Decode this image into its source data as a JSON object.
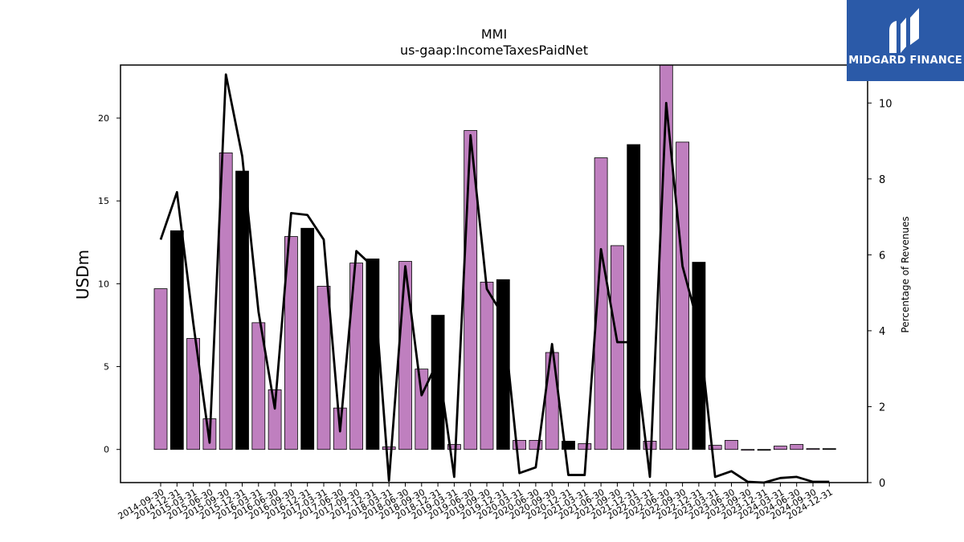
{
  "chart_data": {
    "type": "bar",
    "title": "MMI",
    "subtitle": "us-gaap:IncomeTaxesPaidNet",
    "ylabel": "USDm",
    "y2label": "Percentage of Revenues",
    "ylim": [
      -2,
      23.2
    ],
    "y2lim": [
      0,
      11
    ],
    "yticks": [
      0,
      5,
      10,
      15,
      20
    ],
    "y2ticks": [
      0,
      2,
      4,
      6,
      8,
      10
    ],
    "categories": [
      "2014-09-30",
      "2014-12-31",
      "2015-03-31",
      "2015-06-30",
      "2015-09-30",
      "2015-12-31",
      "2016-03-31",
      "2016-06-30",
      "2016-09-30",
      "2016-12-31",
      "2017-03-31",
      "2017-06-30",
      "2017-09-30",
      "2017-12-31",
      "2018-03-31",
      "2018-06-30",
      "2018-09-30",
      "2018-12-31",
      "2019-03-31",
      "2019-06-30",
      "2019-09-30",
      "2019-12-31",
      "2020-03-31",
      "2020-06-30",
      "2020-09-30",
      "2020-12-31",
      "2021-03-31",
      "2021-06-30",
      "2021-09-30",
      "2021-12-31",
      "2022-03-31",
      "2022-06-30",
      "2022-09-30",
      "2022-12-31",
      "2023-03-31",
      "2023-06-30",
      "2023-09-30",
      "2023-12-31",
      "2024-03-31",
      "2024-06-30",
      "2024-09-30",
      "2024-12-31"
    ],
    "series": [
      {
        "values": [
          9.7,
          13.2,
          6.7,
          1.85,
          17.9,
          16.8,
          7.65,
          3.6,
          12.85,
          13.35,
          9.85,
          2.5,
          11.25,
          11.5,
          0.15,
          11.35,
          4.85,
          8.1,
          0.3,
          19.25,
          10.1,
          10.25,
          0.55,
          0.55,
          5.85,
          0.5,
          0.35,
          17.6,
          12.3,
          18.4,
          0.5,
          23.2,
          18.55,
          11.3,
          0.25,
          0.55,
          0.0,
          -0.05,
          0.2,
          0.3,
          0.05,
          0.05
        ],
        "q4_flags": [
          false,
          true,
          false,
          false,
          false,
          true,
          false,
          false,
          false,
          true,
          false,
          false,
          false,
          true,
          false,
          false,
          false,
          true,
          false,
          false,
          false,
          true,
          false,
          false,
          false,
          true,
          false,
          false,
          false,
          true,
          false,
          false,
          false,
          true,
          false,
          false,
          false,
          true,
          false,
          false,
          false,
          true
        ]
      },
      {
        "axis": "right",
        "type": "line",
        "values": [
          6.4,
          7.65,
          4.2,
          1.05,
          10.75,
          8.6,
          4.5,
          1.95,
          7.1,
          7.05,
          6.4,
          1.35,
          6.1,
          5.7,
          0.05,
          5.7,
          2.3,
          3.2,
          0.15,
          9.15,
          5.1,
          4.4,
          0.25,
          0.4,
          3.65,
          0.2,
          0.2,
          6.15,
          3.7,
          3.7,
          0.15,
          10.0,
          5.7,
          4.1,
          0.15,
          0.3,
          0.02,
          0.0,
          0.12,
          0.15,
          0.02,
          0.02
        ]
      }
    ],
    "colors": {
      "bar": "#bf7fbf",
      "bar_q4": "#000000",
      "line": "#000000"
    }
  },
  "logo": {
    "text": "MIDGARD FINANCE",
    "color": "#2b5aa8"
  }
}
